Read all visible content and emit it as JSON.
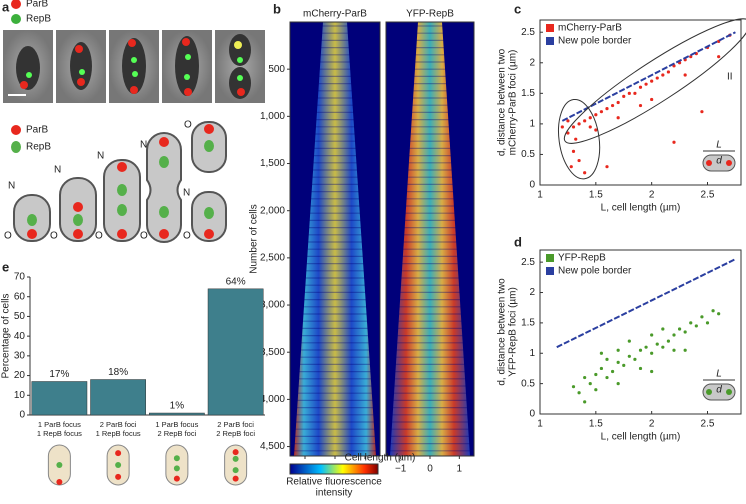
{
  "panel_a": {
    "label": "a",
    "legend": [
      "ParB",
      "RepB"
    ],
    "diagram_legend": [
      "ParB",
      "RepB"
    ],
    "new_pole": "N",
    "old_pole": "O"
  },
  "chart_data": [
    {
      "type": "heatmap",
      "label": "b",
      "panels": [
        "mCherry-ParB",
        "YFP-RepB"
      ],
      "ylabel": "Number of cells",
      "ylim": [
        0,
        4600
      ],
      "yticks": [
        {
          "value": 500,
          "label": "500"
        },
        {
          "value": 1000,
          "label": "1,000"
        },
        {
          "value": 1500,
          "label": "1,500"
        },
        {
          "value": 2000,
          "label": "2,000"
        },
        {
          "value": 2500,
          "label": "2,500"
        },
        {
          "value": 3000,
          "label": "3,000"
        },
        {
          "value": 3500,
          "label": "3,500"
        },
        {
          "value": 4000,
          "label": "4,000"
        },
        {
          "value": 4500,
          "label": "4,500"
        }
      ],
      "xlabel": "Cell length (µm)",
      "xlim": [
        -1.5,
        1.5
      ],
      "xticks": [
        {
          "value": -1,
          "label": "−1"
        },
        0,
        1
      ],
      "colorbar_label": [
        "Relative fluorescence",
        "intensity"
      ]
    },
    {
      "type": "scatter",
      "label": "c",
      "xlabel": "L, cell length (µm)",
      "ylabel": [
        "d, distance between two",
        "mCherry-ParB foci (µm)"
      ],
      "xlim": [
        1,
        2.8
      ],
      "ylim": [
        0,
        2.7
      ],
      "xticks": [
        1,
        1.5,
        2,
        2.5
      ],
      "yticks": [
        0,
        0.5,
        1,
        1.5,
        2,
        2.5
      ],
      "annotations": [
        "II"
      ],
      "inset_labels": [
        "L",
        "d"
      ],
      "legend": "upper left",
      "series": [
        {
          "name": "mCherry-ParB",
          "color": "#e8281e",
          "marker": "point",
          "x": [
            1.25,
            1.3,
            1.35,
            1.3,
            1.28,
            1.32,
            1.4,
            1.45,
            1.5,
            1.55,
            1.6,
            1.65,
            1.7,
            1.75,
            1.8,
            1.85,
            1.9,
            1.95,
            2.0,
            2.05,
            2.1,
            2.15,
            2.2,
            2.25,
            2.3,
            2.35,
            2.4,
            2.5,
            2.6,
            2.7,
            1.5,
            1.7,
            2.0,
            2.3,
            1.2,
            1.35,
            1.4,
            2.6,
            1.9,
            1.6,
            2.2,
            2.45,
            1.25,
            1.45
          ],
          "y": [
            0.85,
            0.95,
            1.0,
            0.55,
            0.3,
            0.75,
            1.05,
            1.1,
            1.15,
            1.2,
            1.25,
            1.3,
            1.35,
            1.45,
            1.5,
            1.5,
            1.6,
            1.65,
            1.7,
            1.75,
            1.8,
            1.85,
            1.95,
            2.0,
            2.05,
            2.1,
            2.15,
            2.25,
            2.35,
            2.45,
            0.9,
            1.1,
            1.4,
            1.8,
            0.95,
            0.4,
            0.2,
            2.1,
            1.3,
            0.3,
            0.7,
            1.2,
            1.05,
            0.95
          ]
        },
        {
          "name": "New pole border",
          "color": "#2b3fa0",
          "marker": "dashed-line",
          "x": [
            1.2,
            2.75
          ],
          "y": [
            1.05,
            2.5
          ]
        }
      ]
    },
    {
      "type": "scatter",
      "label": "d",
      "xlabel": "L, cell length (µm)",
      "ylabel": [
        "d, distance between two",
        "YFP-RepB foci (µm)"
      ],
      "xlim": [
        1,
        2.8
      ],
      "ylim": [
        0,
        2.7
      ],
      "xticks": [
        1,
        1.5,
        2,
        2.5
      ],
      "yticks": [
        0,
        0.5,
        1,
        1.5,
        2,
        2.5
      ],
      "inset_labels": [
        "L",
        "d"
      ],
      "legend": "upper left",
      "series": [
        {
          "name": "YFP-RepB",
          "color": "#4a9a2a",
          "marker": "point",
          "x": [
            1.3,
            1.35,
            1.4,
            1.45,
            1.5,
            1.5,
            1.55,
            1.6,
            1.6,
            1.65,
            1.7,
            1.7,
            1.75,
            1.8,
            1.8,
            1.85,
            1.9,
            1.9,
            1.95,
            2.0,
            2.0,
            2.05,
            2.1,
            2.1,
            2.15,
            2.2,
            2.2,
            2.25,
            2.3,
            2.35,
            2.4,
            2.45,
            2.5,
            2.55,
            2.6,
            1.4,
            1.7,
            2.0,
            2.3,
            1.55
          ],
          "y": [
            0.45,
            0.35,
            0.6,
            0.5,
            0.65,
            0.4,
            0.75,
            0.6,
            0.9,
            0.7,
            0.85,
            1.05,
            0.8,
            0.95,
            1.2,
            0.9,
            1.05,
            0.75,
            1.1,
            1.0,
            1.3,
            1.15,
            1.1,
            1.4,
            1.2,
            1.3,
            1.05,
            1.4,
            1.35,
            1.5,
            1.45,
            1.6,
            1.5,
            1.7,
            1.65,
            0.2,
            0.5,
            0.7,
            1.05,
            1.0
          ]
        },
        {
          "name": "New pole border",
          "color": "#2b3fa0",
          "marker": "dashed-line",
          "x": [
            1.15,
            2.75
          ],
          "y": [
            1.1,
            2.55
          ]
        }
      ]
    },
    {
      "type": "bar",
      "label": "e",
      "ylabel": "Percentage of cells",
      "ylim": [
        0,
        70
      ],
      "yticks": [
        0,
        10,
        20,
        30,
        40,
        50,
        60,
        70
      ],
      "color": "#3e7f8c",
      "categories": [
        [
          "1 ParB focus",
          "1 RepB focus"
        ],
        [
          "2 ParB foci",
          "1 RepB focus"
        ],
        [
          "1 ParB focus",
          "2 RepB foci"
        ],
        [
          "2 ParB foci",
          "2 RepB foci"
        ]
      ],
      "values": [
        17,
        18,
        1,
        64
      ],
      "value_labels": [
        "17%",
        "18%",
        "1%",
        "64%"
      ]
    }
  ]
}
